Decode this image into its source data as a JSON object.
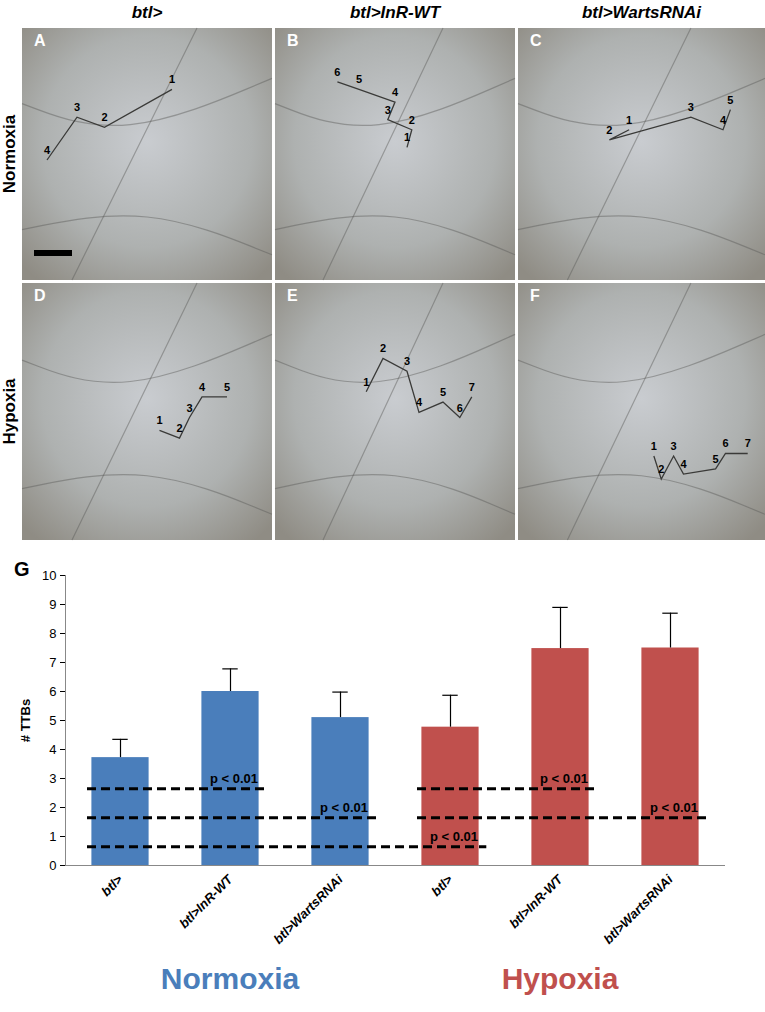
{
  "figure": {
    "columns": [
      "btl>",
      "btl>InR-WT",
      "btl>WartsRNAi"
    ],
    "rows": [
      "Normoxia",
      "Hypoxia"
    ],
    "panels": [
      {
        "letter": "A",
        "labels": [
          1,
          2,
          3,
          4
        ]
      },
      {
        "letter": "B",
        "labels": [
          1,
          2,
          3,
          4,
          5,
          6
        ]
      },
      {
        "letter": "C",
        "labels": [
          1,
          2,
          3,
          4,
          5
        ]
      },
      {
        "letter": "D",
        "labels": [
          1,
          2,
          3,
          4,
          5
        ]
      },
      {
        "letter": "E",
        "labels": [
          1,
          2,
          3,
          4,
          5,
          6,
          7
        ]
      },
      {
        "letter": "F",
        "labels": [
          1,
          2,
          3,
          4,
          5,
          6,
          7
        ]
      }
    ]
  },
  "chart_data": {
    "type": "bar",
    "panel_label": "G",
    "y_label": "# TTBs",
    "categories": [
      "btl>",
      "btl>InR-WT",
      "btl>WartsRNAi",
      "btl>",
      "btl>InR-WT",
      "btl>WartsRNAi"
    ],
    "values": [
      3.72,
      6.0,
      5.1,
      4.77,
      7.48,
      7.5
    ],
    "errors": [
      0.63,
      0.78,
      0.88,
      1.1,
      1.42,
      1.2
    ],
    "colors": [
      "#4a7ebb",
      "#4a7ebb",
      "#4a7ebb",
      "#c0504d",
      "#c0504d",
      "#c0504d"
    ],
    "groups": [
      {
        "name": "Normoxia",
        "color": "#4a7ebb"
      },
      {
        "name": "Hypoxia",
        "color": "#c0504d"
      }
    ],
    "annotations": [
      {
        "from": 0,
        "to": 1,
        "y": 2.65,
        "text": "p < 0.01"
      },
      {
        "from": 0,
        "to": 2,
        "y": 1.65,
        "text": "p < 0.01"
      },
      {
        "from": 0,
        "to": 3,
        "y": 0.65,
        "text": "p < 0.01"
      },
      {
        "from": 3,
        "to": 4,
        "y": 2.65,
        "text": "p < 0.01"
      },
      {
        "from": 3,
        "to": 5,
        "y": 1.65,
        "text": "p < 0.01"
      }
    ],
    "ylim": [
      0,
      10
    ],
    "yticks": [
      0,
      1,
      2,
      3,
      4,
      5,
      6,
      7,
      8,
      9,
      10
    ]
  }
}
